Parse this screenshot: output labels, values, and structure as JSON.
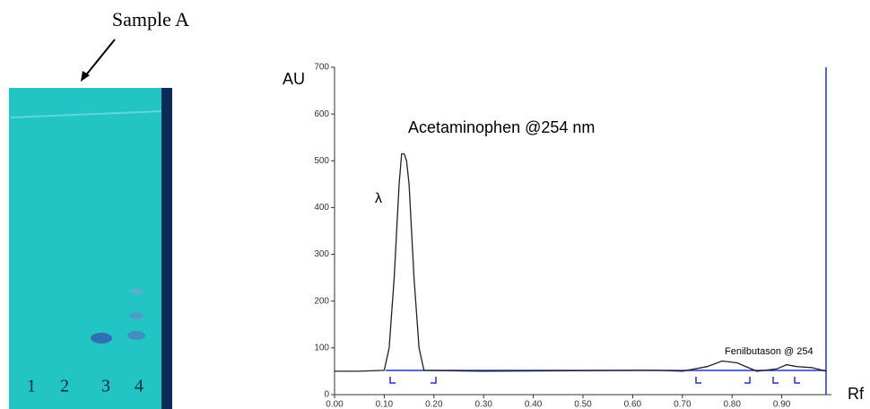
{
  "plate": {
    "label": "Sample A",
    "lanes": [
      "1",
      "2",
      "3",
      "4"
    ]
  },
  "chart_data": {
    "type": "line",
    "y_label": "AU",
    "x_label": "Rf",
    "annotations": [
      "Acetaminophen @254 nm",
      "λ",
      "Fenilbutason @ 254"
    ],
    "x": [
      0.0,
      0.05,
      0.1,
      0.11,
      0.12,
      0.13,
      0.135,
      0.14,
      0.145,
      0.15,
      0.16,
      0.17,
      0.18,
      0.3,
      0.6,
      0.65,
      0.7,
      0.75,
      0.78,
      0.81,
      0.85,
      0.89,
      0.91,
      0.93,
      0.96,
      0.99
    ],
    "values": [
      50,
      50,
      52,
      100,
      250,
      450,
      515,
      515,
      500,
      450,
      250,
      100,
      52,
      50,
      52,
      52,
      50,
      60,
      72,
      68,
      50,
      55,
      64,
      60,
      58,
      50
    ],
    "color": "#222222",
    "xlim": [
      0,
      1.0
    ],
    "ylim": [
      0,
      700
    ],
    "xticks": [
      {
        "value": 0,
        "label": "0.00"
      },
      {
        "value": 0.1,
        "label": "0.10"
      },
      {
        "value": 0.2,
        "label": "0.20"
      },
      {
        "value": 0.3,
        "label": "0.30"
      },
      {
        "value": 0.4,
        "label": "0.40"
      },
      {
        "value": 0.5,
        "label": "0.50"
      },
      {
        "value": 0.6,
        "label": "0.60"
      },
      {
        "value": 0.7,
        "label": "0.70"
      },
      {
        "value": 0.8,
        "label": "0.80"
      },
      {
        "value": 0.9,
        "label": "0.90"
      }
    ],
    "yticks": [
      0,
      100,
      200,
      300,
      400,
      500,
      600,
      700
    ]
  }
}
